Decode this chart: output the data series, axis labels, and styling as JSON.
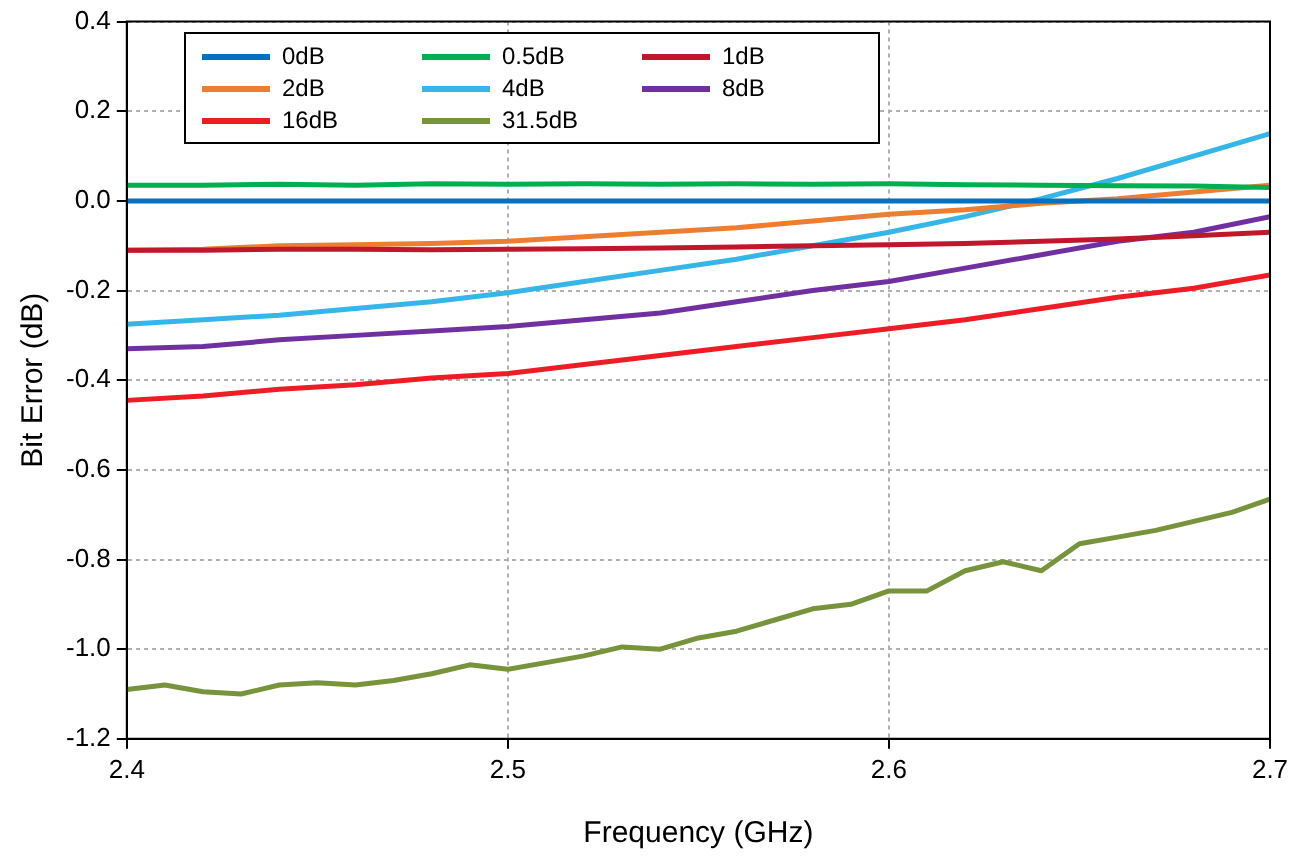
{
  "chart_data": {
    "type": "line",
    "xlabel": "Frequency (GHz)",
    "ylabel": "Bit Error (dB)",
    "xlim": [
      2.4,
      2.7
    ],
    "xticks": [
      2.4,
      2.5,
      2.6,
      2.7
    ],
    "ylim": [
      -1.2,
      0.4
    ],
    "yticks": [
      {
        "value": -1.2,
        "label": "-1.2"
      },
      {
        "value": -1,
        "label": "-1.0"
      },
      -0.8,
      -0.6,
      -0.4,
      -0.2,
      {
        "value": 0,
        "label": "0.0"
      },
      0.2,
      0.4
    ],
    "grid": true,
    "legend": "top left",
    "marker": "none",
    "line_style": "solid",
    "series": [
      {
        "name": "0dB",
        "color": "#0070c0",
        "x": [
          2.4,
          2.5,
          2.6,
          2.7
        ],
        "values": [
          0,
          0,
          0,
          0
        ]
      },
      {
        "name": "0.5dB",
        "color": "#00b050",
        "x": [
          2.4,
          2.42,
          2.44,
          2.46,
          2.48,
          2.5,
          2.52,
          2.54,
          2.56,
          2.58,
          2.6,
          2.62,
          2.64,
          2.66,
          2.68,
          2.7
        ],
        "values": [
          0.035,
          0.035,
          0.037,
          0.035,
          0.038,
          0.037,
          0.038,
          0.037,
          0.038,
          0.037,
          0.038,
          0.036,
          0.035,
          0.034,
          0.033,
          0.03
        ]
      },
      {
        "name": "1dB",
        "color": "#c0172c",
        "x": [
          2.4,
          2.42,
          2.44,
          2.46,
          2.48,
          2.5,
          2.52,
          2.54,
          2.56,
          2.58,
          2.6,
          2.62,
          2.64,
          2.66,
          2.68,
          2.7
        ],
        "values": [
          -0.11,
          -0.11,
          -0.108,
          -0.108,
          -0.109,
          -0.108,
          -0.107,
          -0.105,
          -0.103,
          -0.1,
          -0.098,
          -0.095,
          -0.09,
          -0.085,
          -0.078,
          -0.07
        ]
      },
      {
        "name": "2dB",
        "color": "#ed7d31",
        "x": [
          2.4,
          2.42,
          2.44,
          2.46,
          2.48,
          2.5,
          2.52,
          2.54,
          2.56,
          2.58,
          2.6,
          2.62,
          2.64,
          2.66,
          2.68,
          2.7
        ],
        "values": [
          -0.11,
          -0.108,
          -0.1,
          -0.098,
          -0.095,
          -0.09,
          -0.08,
          -0.07,
          -0.06,
          -0.045,
          -0.03,
          -0.02,
          -0.005,
          0.005,
          0.02,
          0.035
        ]
      },
      {
        "name": "4dB",
        "color": "#35b6e7",
        "x": [
          2.4,
          2.42,
          2.44,
          2.46,
          2.48,
          2.5,
          2.52,
          2.54,
          2.56,
          2.58,
          2.6,
          2.62,
          2.64,
          2.66,
          2.68,
          2.7
        ],
        "values": [
          -0.275,
          -0.265,
          -0.255,
          -0.24,
          -0.225,
          -0.205,
          -0.18,
          -0.155,
          -0.13,
          -0.1,
          -0.07,
          -0.035,
          0.005,
          0.05,
          0.1,
          0.15
        ]
      },
      {
        "name": "8dB",
        "color": "#7030a0",
        "x": [
          2.4,
          2.42,
          2.44,
          2.46,
          2.48,
          2.5,
          2.52,
          2.54,
          2.56,
          2.58,
          2.6,
          2.62,
          2.64,
          2.66,
          2.68,
          2.7
        ],
        "values": [
          -0.33,
          -0.325,
          -0.31,
          -0.3,
          -0.29,
          -0.28,
          -0.265,
          -0.25,
          -0.225,
          -0.2,
          -0.18,
          -0.15,
          -0.12,
          -0.09,
          -0.07,
          -0.035
        ]
      },
      {
        "name": "16dB",
        "color": "#ee1c25",
        "x": [
          2.4,
          2.42,
          2.44,
          2.46,
          2.48,
          2.5,
          2.52,
          2.54,
          2.56,
          2.58,
          2.6,
          2.62,
          2.64,
          2.66,
          2.68,
          2.7
        ],
        "values": [
          -0.445,
          -0.435,
          -0.42,
          -0.41,
          -0.395,
          -0.385,
          -0.365,
          -0.345,
          -0.325,
          -0.305,
          -0.285,
          -0.265,
          -0.24,
          -0.215,
          -0.195,
          -0.165
        ]
      },
      {
        "name": "31.5dB",
        "color": "#77933c",
        "x": [
          2.4,
          2.41,
          2.42,
          2.43,
          2.44,
          2.45,
          2.46,
          2.47,
          2.48,
          2.49,
          2.5,
          2.51,
          2.52,
          2.53,
          2.54,
          2.55,
          2.56,
          2.57,
          2.58,
          2.59,
          2.6,
          2.61,
          2.62,
          2.63,
          2.64,
          2.65,
          2.66,
          2.67,
          2.68,
          2.69,
          2.7
        ],
        "values": [
          -1.09,
          -1.08,
          -1.095,
          -1.1,
          -1.08,
          -1.075,
          -1.08,
          -1.07,
          -1.055,
          -1.035,
          -1.045,
          -1.03,
          -1.015,
          -0.995,
          -1.0,
          -0.975,
          -0.96,
          -0.935,
          -0.91,
          -0.9,
          -0.87,
          -0.87,
          -0.825,
          -0.805,
          -0.825,
          -0.765,
          -0.75,
          -0.735,
          -0.715,
          -0.695,
          -0.665
        ]
      }
    ]
  }
}
